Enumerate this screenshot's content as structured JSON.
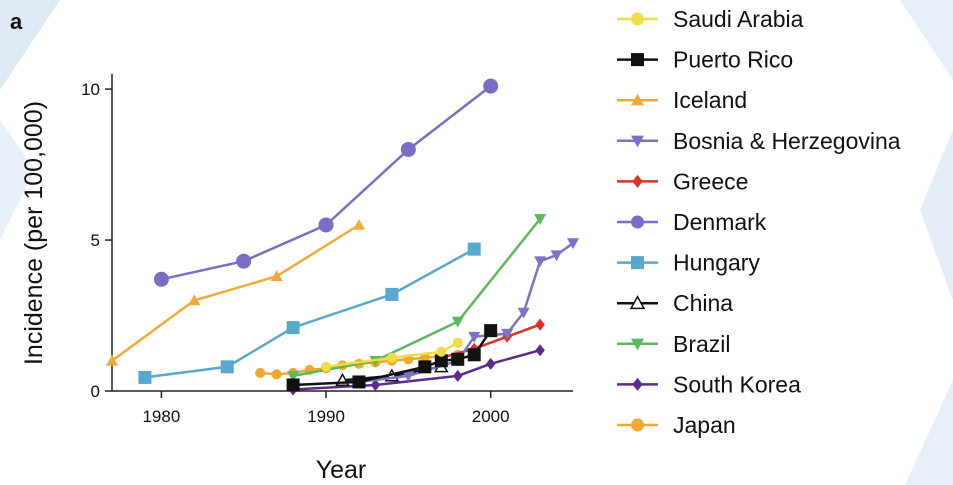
{
  "panel_label": "a",
  "chart_data": {
    "type": "line",
    "xlabel": "Year",
    "ylabel": "Incidence (per 100,000)",
    "xlim": [
      1977,
      2005
    ],
    "ylim": [
      0,
      10.5
    ],
    "x_ticks": [
      1980,
      1990,
      2000
    ],
    "y_ticks": [
      0,
      5,
      10
    ],
    "grid": false,
    "legend_position": "right",
    "series": [
      {
        "name": "Saudi Arabia",
        "color": "#f2dd45",
        "marker": "circle",
        "points": [
          [
            1990,
            0.8
          ],
          [
            1994,
            1.1
          ],
          [
            1997,
            1.3
          ],
          [
            1998,
            1.6
          ]
        ]
      },
      {
        "name": "Puerto Rico",
        "color": "#111111",
        "marker": "square",
        "points": [
          [
            1988,
            0.2
          ],
          [
            1992,
            0.3
          ],
          [
            1996,
            0.8
          ],
          [
            1997,
            1.0
          ],
          [
            1998,
            1.05
          ],
          [
            1999,
            1.2
          ],
          [
            2000,
            2.0
          ]
        ]
      },
      {
        "name": "Iceland",
        "color": "#f2a93b",
        "marker": "triangle-up",
        "points": [
          [
            1977,
            1.0
          ],
          [
            1982,
            3.0
          ],
          [
            1987,
            3.8
          ],
          [
            1992,
            5.5
          ]
        ]
      },
      {
        "name": "Bosnia & Herzegovina",
        "color": "#7d72c8",
        "marker": "triangle-down",
        "points": [
          [
            1992,
            0.3
          ],
          [
            1995,
            0.5
          ],
          [
            1998,
            1.0
          ],
          [
            1999,
            1.8
          ],
          [
            2001,
            1.9
          ],
          [
            2002,
            2.6
          ],
          [
            2003,
            4.3
          ],
          [
            2004,
            4.5
          ],
          [
            2005,
            4.9
          ]
        ]
      },
      {
        "name": "Greece",
        "color": "#d8332a",
        "marker": "diamond",
        "points": [
          [
            1997,
            1.1
          ],
          [
            1999,
            1.4
          ],
          [
            2001,
            1.8
          ],
          [
            2003,
            2.2
          ]
        ]
      },
      {
        "name": "Denmark",
        "color": "#7a6dc4",
        "marker": "circle",
        "points": [
          [
            1980,
            3.7
          ],
          [
            1985,
            4.3
          ],
          [
            1990,
            5.5
          ],
          [
            1995,
            8.0
          ],
          [
            2000,
            10.1
          ]
        ]
      },
      {
        "name": "Hungary",
        "color": "#5aa7ce",
        "marker": "square",
        "points": [
          [
            1979,
            0.45
          ],
          [
            1984,
            0.8
          ],
          [
            1988,
            2.1
          ],
          [
            1994,
            3.2
          ],
          [
            1999,
            4.7
          ]
        ]
      },
      {
        "name": "China",
        "color": "#111111",
        "marker": "triangle-up-open",
        "points": [
          [
            1991,
            0.35
          ],
          [
            1994,
            0.5
          ],
          [
            1997,
            0.8
          ]
        ]
      },
      {
        "name": "Brazil",
        "color": "#5cb85c",
        "marker": "triangle-down",
        "points": [
          [
            1988,
            0.5
          ],
          [
            1993,
            1.0
          ],
          [
            1998,
            2.3
          ],
          [
            2003,
            5.7
          ]
        ]
      },
      {
        "name": "South Korea",
        "color": "#5c2a8a",
        "marker": "diamond",
        "points": [
          [
            1988,
            0.05
          ],
          [
            1993,
            0.2
          ],
          [
            1998,
            0.5
          ],
          [
            2000,
            0.9
          ],
          [
            2003,
            1.35
          ]
        ]
      },
      {
        "name": "Japan",
        "color": "#f0a830",
        "marker": "circle",
        "points": [
          [
            1986,
            0.6
          ],
          [
            1987,
            0.55
          ],
          [
            1988,
            0.6
          ],
          [
            1989,
            0.7
          ],
          [
            1990,
            0.75
          ],
          [
            1991,
            0.85
          ],
          [
            1992,
            0.9
          ],
          [
            1993,
            0.95
          ],
          [
            1994,
            1.0
          ],
          [
            1995,
            1.05
          ],
          [
            1996,
            1.1
          ],
          [
            1997,
            1.15
          ],
          [
            1998,
            1.2
          ]
        ]
      }
    ]
  }
}
